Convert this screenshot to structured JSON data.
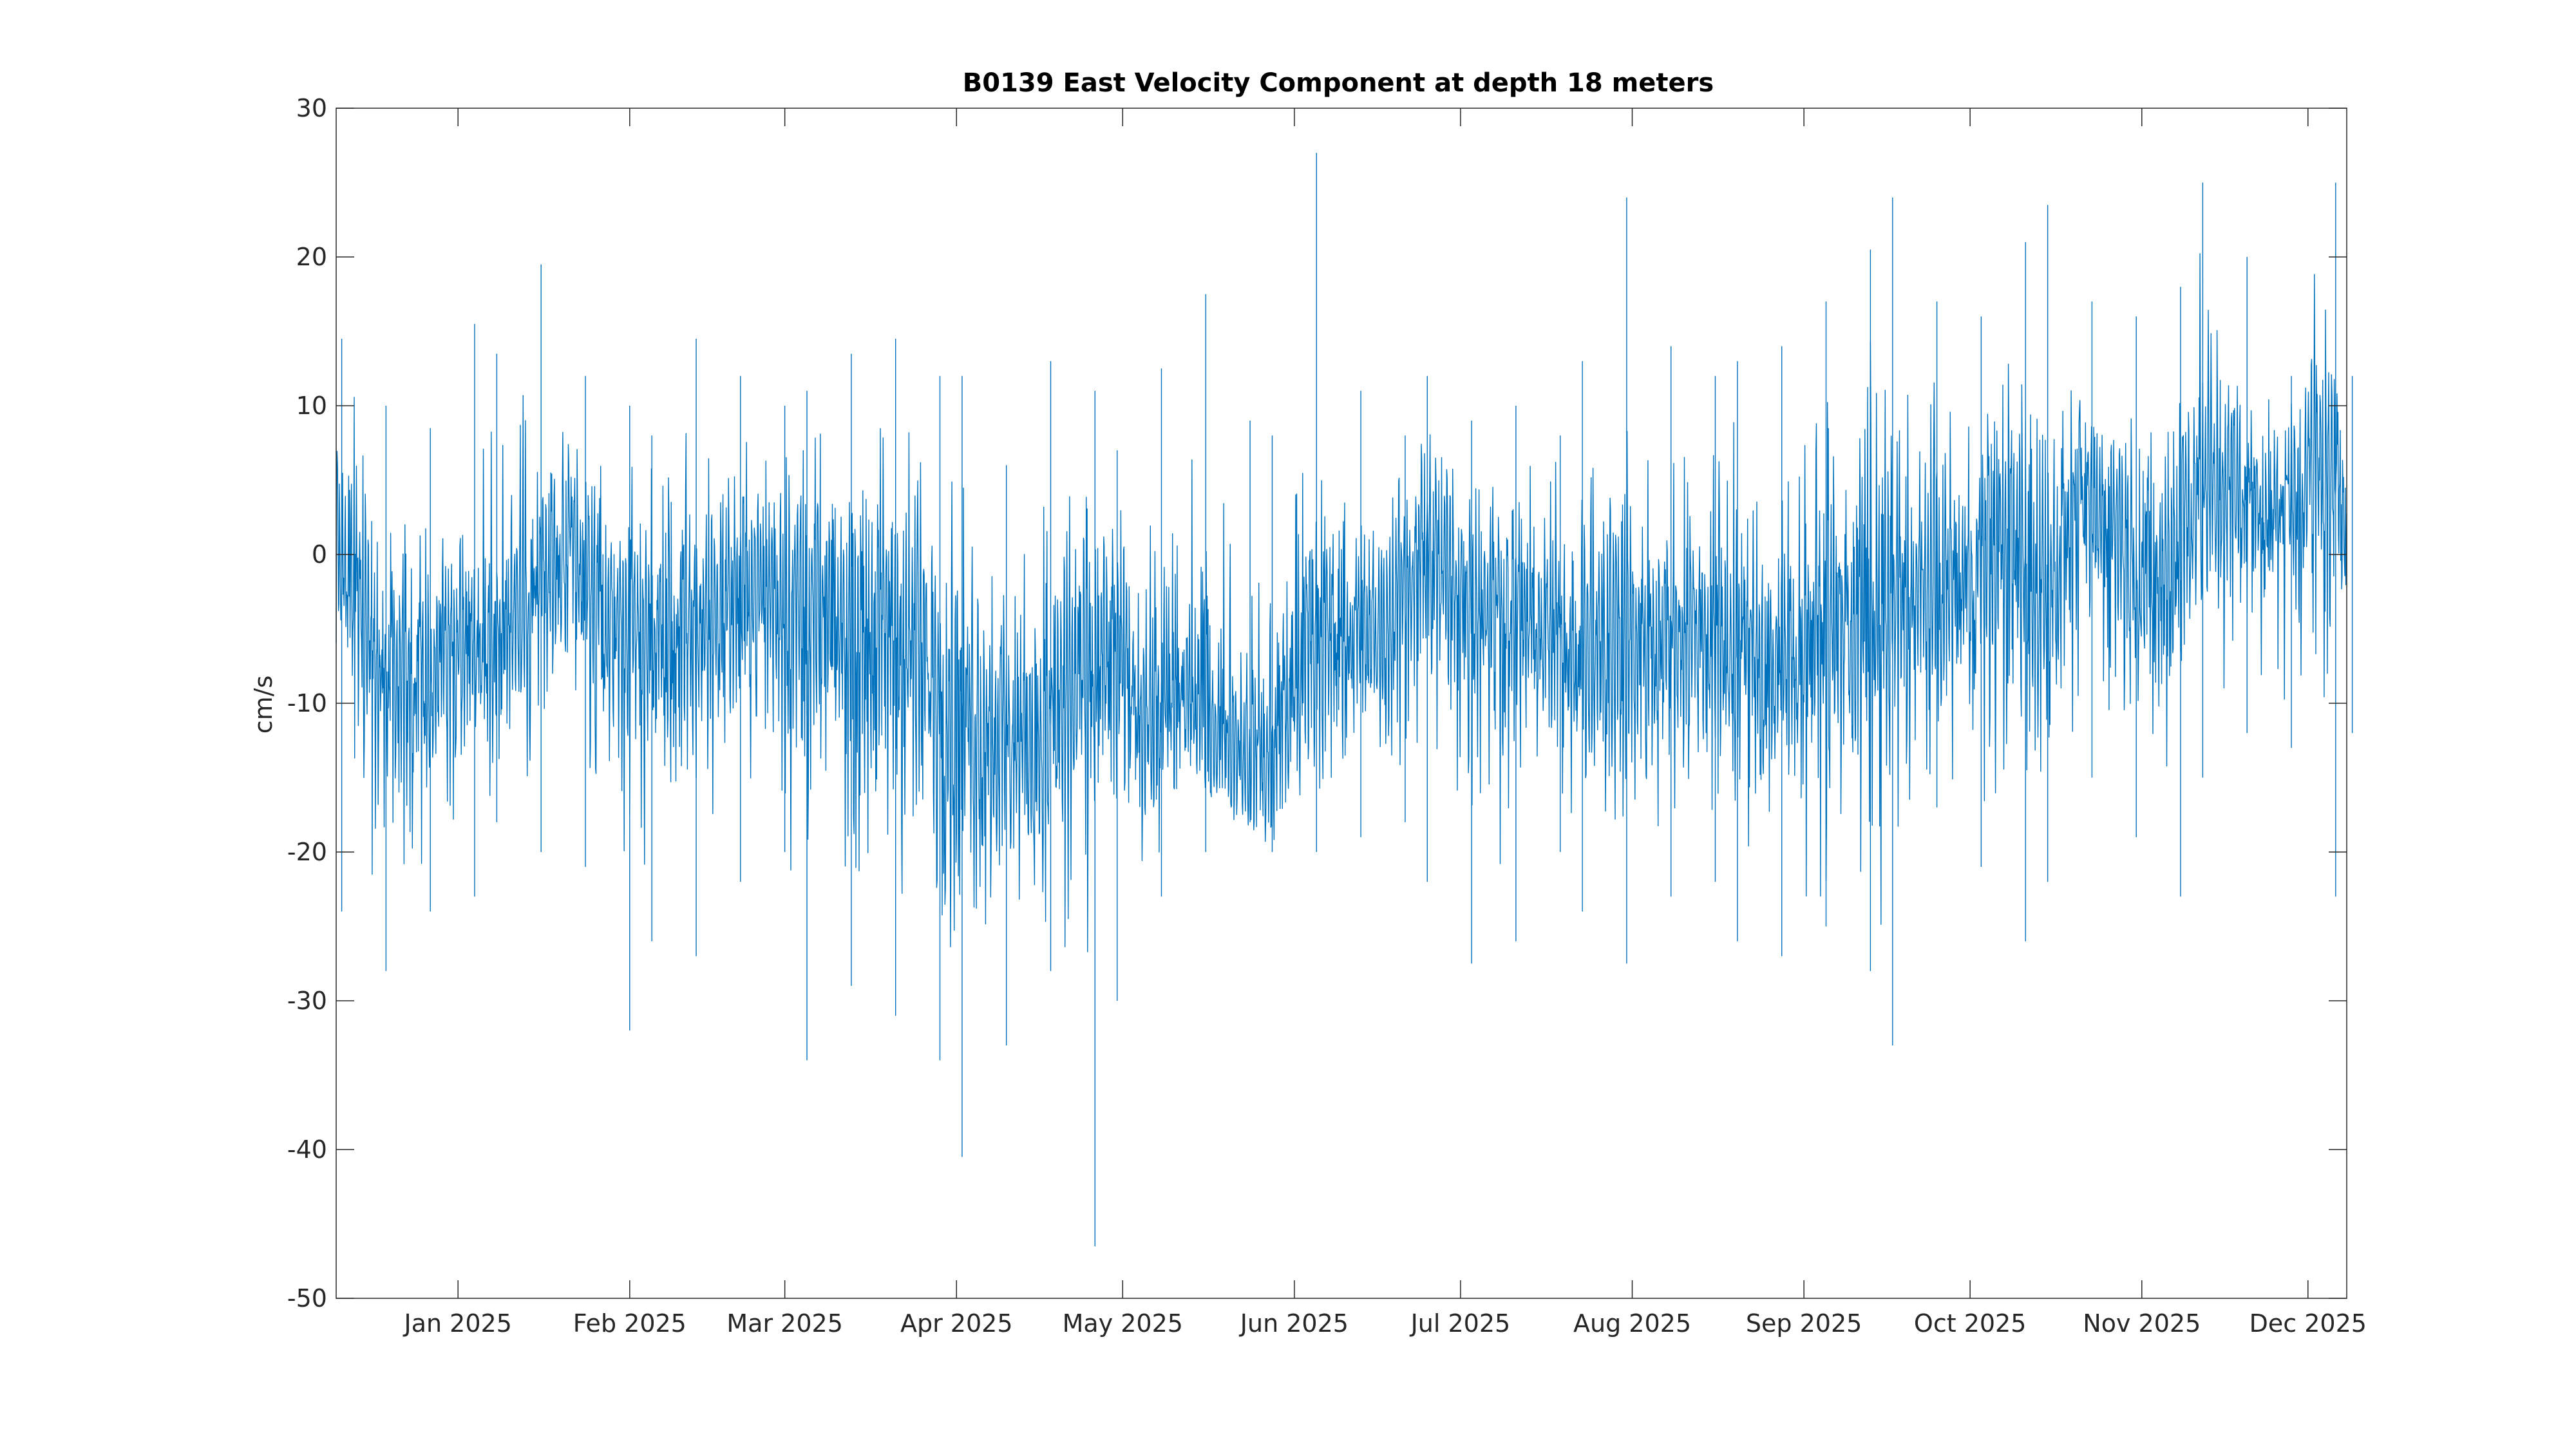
{
  "chart_data": {
    "type": "line",
    "title": "B0139 East Velocity Component at depth 18 meters",
    "xlabel": "",
    "ylabel": "cm/s",
    "xlim": [
      "2024-12-10",
      "2025-12-08"
    ],
    "ylim": [
      -50,
      30
    ],
    "yticks": [
      -50,
      -40,
      -30,
      -20,
      -10,
      0,
      10,
      20,
      30
    ],
    "xticks": [
      {
        "date": "2025-01-01",
        "label": "Jan 2025"
      },
      {
        "date": "2025-02-01",
        "label": "Feb 2025"
      },
      {
        "date": "2025-03-01",
        "label": "Mar 2025"
      },
      {
        "date": "2025-04-01",
        "label": "Apr 2025"
      },
      {
        "date": "2025-05-01",
        "label": "May 2025"
      },
      {
        "date": "2025-06-01",
        "label": "Jun 2025"
      },
      {
        "date": "2025-07-01",
        "label": "Jul 2025"
      },
      {
        "date": "2025-08-01",
        "label": "Aug 2025"
      },
      {
        "date": "2025-09-01",
        "label": "Sep 2025"
      },
      {
        "date": "2025-10-01",
        "label": "Oct 2025"
      },
      {
        "date": "2025-11-01",
        "label": "Nov 2025"
      },
      {
        "date": "2025-12-01",
        "label": "Dec 2025"
      }
    ],
    "grid": false,
    "series": [
      {
        "color": "#0072bd",
        "x": [
          "2024-12-10",
          "2024-12-17",
          "2024-12-24",
          "2024-12-31",
          "2025-01-07",
          "2025-01-14",
          "2025-01-21",
          "2025-01-28",
          "2025-02-04",
          "2025-02-11",
          "2025-02-18",
          "2025-02-25",
          "2025-03-04",
          "2025-03-11",
          "2025-03-18",
          "2025-03-25",
          "2025-04-01",
          "2025-04-08",
          "2025-04-15",
          "2025-04-22",
          "2025-04-29",
          "2025-05-06",
          "2025-05-13",
          "2025-05-20",
          "2025-05-27",
          "2025-06-03",
          "2025-06-10",
          "2025-06-17",
          "2025-06-24",
          "2025-07-01",
          "2025-07-08",
          "2025-07-15",
          "2025-07-22",
          "2025-07-29",
          "2025-08-05",
          "2025-08-12",
          "2025-08-19",
          "2025-08-26",
          "2025-09-02",
          "2025-09-09",
          "2025-09-16",
          "2025-09-23",
          "2025-09-30",
          "2025-10-07",
          "2025-10-14",
          "2025-10-21",
          "2025-10-28",
          "2025-11-04",
          "2025-11-11",
          "2025-11-18",
          "2025-11-25",
          "2025-12-02",
          "2025-12-08"
        ],
        "mean": [
          2,
          -8,
          -9,
          -7,
          -6,
          -3,
          0,
          -4,
          -5,
          -6,
          -3,
          -2,
          -3,
          -5,
          -5,
          -6,
          -10,
          -12,
          -13,
          -9,
          -6,
          -12,
          -10,
          -13,
          -15,
          -8,
          -5,
          -6,
          1,
          -2,
          -3,
          -5,
          -6,
          -7,
          -6,
          -5,
          -6,
          -8,
          -6,
          -5,
          -4,
          -3,
          -2,
          1,
          -3,
          3,
          2,
          -3,
          5,
          4,
          3,
          6,
          4
        ],
        "max": [
          14.5,
          10,
          8.5,
          15.5,
          13.5,
          19.5,
          12,
          10,
          8,
          14.5,
          12,
          10,
          11,
          13.5,
          14.5,
          12,
          12,
          6,
          13,
          11,
          7,
          12.5,
          17.5,
          9,
          8,
          27,
          11,
          8,
          12,
          9,
          10,
          8,
          13,
          24,
          14,
          12,
          13,
          14,
          17,
          20.5,
          24,
          17,
          16,
          21,
          23.5,
          17,
          16,
          18,
          25,
          20,
          12,
          25,
          12
        ],
        "min": [
          -24,
          -28,
          -24,
          -23,
          -18,
          -20,
          -21,
          -32,
          -26,
          -27,
          -22,
          -20,
          -34,
          -29,
          -31,
          -34,
          -40.5,
          -33,
          -28,
          -46.5,
          -30,
          -23,
          -20,
          -18,
          -20,
          -20,
          -19,
          -18,
          -22,
          -27.5,
          -26,
          -20,
          -24,
          -27.5,
          -23,
          -22,
          -26,
          -27,
          -25,
          -28,
          -33,
          -17,
          -21,
          -26,
          -22,
          -15,
          -19,
          -23,
          -15,
          -12,
          -13,
          -23,
          -12
        ]
      }
    ]
  }
}
